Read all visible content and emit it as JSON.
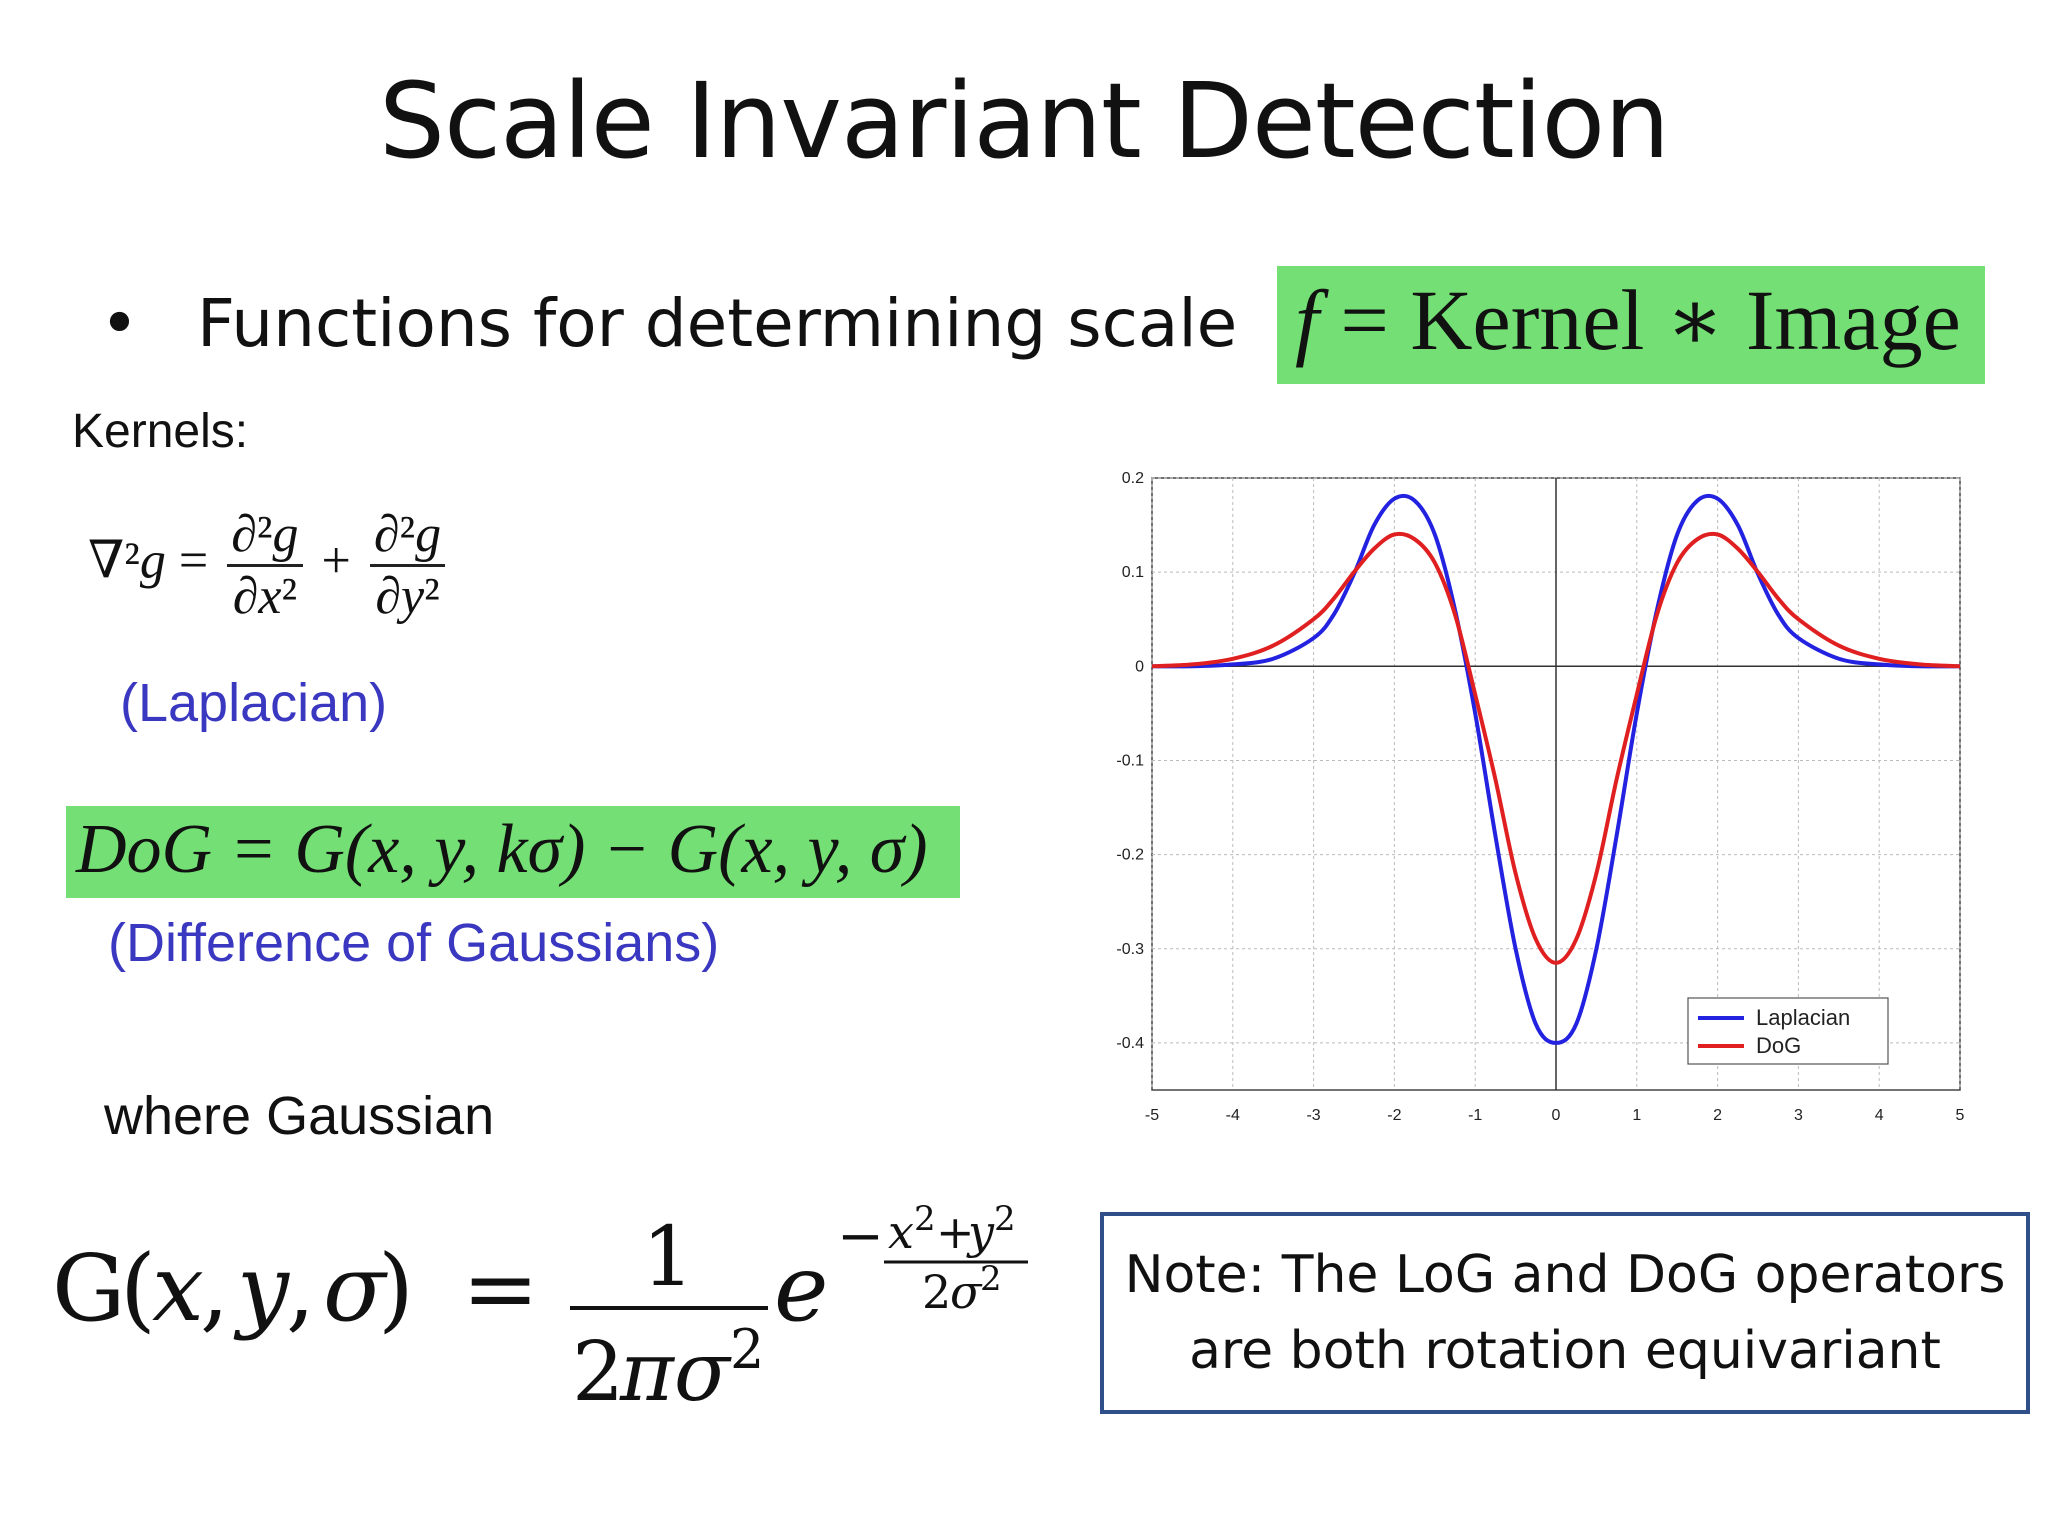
{
  "slide": {
    "title": "Scale Invariant Detection",
    "bullet_symbol": "•",
    "bullet_text": "Functions for determining scale",
    "top_equation": {
      "lhs": "f",
      "eq": " = ",
      "kernel": "Kernel",
      "star": " ∗ ",
      "image": "Image"
    },
    "kernels_label": "Kernels:",
    "laplacian_label": "(Laplacian)",
    "dog_equation": "DoG = G(x, y, kσ) − G(x, y, σ)",
    "dog_label": "(Difference of Gaussians)",
    "where_label": "where Gaussian",
    "note": {
      "line1": "Note: The LoG and DoG operators",
      "line2": "are both rotation equivariant"
    }
  },
  "chart_data": {
    "type": "line",
    "x": [
      -5,
      -4.5,
      -4,
      -3.5,
      -3,
      -2.75,
      -2.5,
      -2.25,
      -2,
      -1.75,
      -1.5,
      -1.25,
      -1,
      -0.75,
      -0.5,
      -0.25,
      0,
      0.25,
      0.5,
      0.75,
      1,
      1.25,
      1.5,
      1.75,
      2,
      2.25,
      2.5,
      2.75,
      3,
      3.5,
      4,
      4.5,
      5
    ],
    "series": [
      {
        "name": "Laplacian",
        "color": "#2222e0",
        "values": [
          0.0,
          0.0,
          0.002,
          0.008,
          0.03,
          0.055,
          0.098,
          0.15,
          0.178,
          0.176,
          0.14,
          0.06,
          -0.05,
          -0.18,
          -0.3,
          -0.38,
          -0.4,
          -0.38,
          -0.3,
          -0.18,
          -0.05,
          0.06,
          0.14,
          0.176,
          0.178,
          0.15,
          0.098,
          0.055,
          0.03,
          0.008,
          0.002,
          0.0,
          0.0
        ]
      },
      {
        "name": "DoG",
        "color": "#e02020",
        "values": [
          0.0,
          0.002,
          0.008,
          0.022,
          0.05,
          0.072,
          0.1,
          0.125,
          0.14,
          0.135,
          0.11,
          0.055,
          -0.03,
          -0.12,
          -0.22,
          -0.29,
          -0.315,
          -0.29,
          -0.22,
          -0.12,
          -0.03,
          0.055,
          0.11,
          0.135,
          0.14,
          0.125,
          0.1,
          0.072,
          0.05,
          0.022,
          0.008,
          0.002,
          0.0
        ]
      }
    ],
    "x_ticks": [
      "-5",
      "-4",
      "-3",
      "-2",
      "-1",
      "0",
      "1",
      "2",
      "3",
      "4",
      "5"
    ],
    "y_ticks": [
      "0.2",
      "0.1",
      "0",
      "-0.1",
      "-0.2",
      "-0.3",
      "-0.4"
    ],
    "xlim": [
      -5,
      5
    ],
    "ylim": [
      -0.45,
      0.2
    ],
    "grid": true,
    "legend_position": "bottom-right"
  }
}
